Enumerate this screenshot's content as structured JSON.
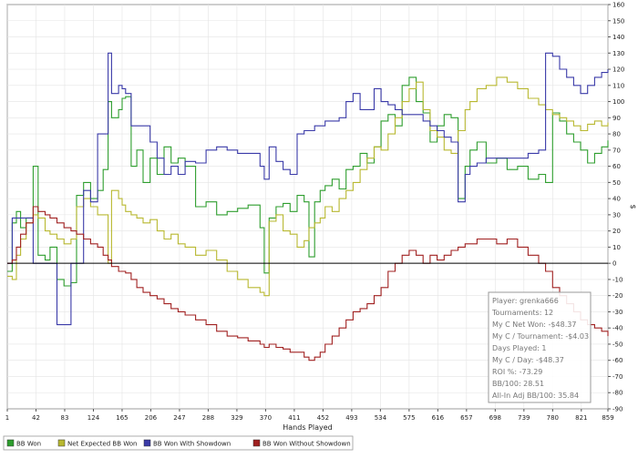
{
  "chart_data": {
    "type": "line",
    "xlabel": "Hands Played",
    "ylabel": "$",
    "x_ticks": [
      1,
      42,
      83,
      124,
      165,
      206,
      247,
      288,
      329,
      370,
      411,
      452,
      493,
      534,
      575,
      616,
      657,
      698,
      739,
      780,
      821,
      859
    ],
    "y_ticks": [
      -90,
      -80,
      -70,
      -60,
      -50,
      -40,
      -30,
      -20,
      -10,
      0,
      10,
      20,
      30,
      40,
      50,
      60,
      70,
      80,
      90,
      100,
      110,
      120,
      130,
      140,
      150,
      160
    ],
    "xlim": [
      1,
      859
    ],
    "ylim": [
      -90,
      160
    ],
    "series": [
      {
        "name": "BB Won",
        "color": "#2e9e2e",
        "x": [
          1,
          8,
          14,
          20,
          28,
          38,
          45,
          55,
          62,
          72,
          82,
          92,
          100,
          110,
          120,
          130,
          138,
          145,
          150,
          160,
          165,
          170,
          178,
          186,
          195,
          205,
          215,
          225,
          235,
          245,
          255,
          270,
          285,
          300,
          315,
          330,
          345,
          362,
          368,
          375,
          385,
          395,
          405,
          415,
          425,
          432,
          440,
          448,
          455,
          465,
          475,
          485,
          495,
          505,
          515,
          525,
          535,
          545,
          555,
          565,
          575,
          585,
          595,
          605,
          615,
          625,
          635,
          645,
          655,
          662,
          672,
          685,
          700,
          715,
          730,
          745,
          760,
          770,
          780,
          790,
          800,
          810,
          820,
          830,
          840,
          850,
          859
        ],
        "y": [
          -5,
          25,
          32,
          22,
          28,
          60,
          5,
          2,
          10,
          -10,
          -14,
          -12,
          42,
          50,
          40,
          45,
          58,
          100,
          90,
          95,
          102,
          103,
          60,
          70,
          50,
          65,
          55,
          72,
          62,
          65,
          60,
          35,
          38,
          30,
          32,
          34,
          36,
          22,
          -6,
          28,
          35,
          37,
          32,
          42,
          38,
          4,
          38,
          45,
          48,
          52,
          46,
          58,
          60,
          68,
          62,
          72,
          88,
          92,
          85,
          110,
          115,
          100,
          93,
          75,
          85,
          92,
          90,
          40,
          60,
          70,
          75,
          62,
          65,
          58,
          60,
          52,
          55,
          50,
          93,
          88,
          80,
          75,
          70,
          62,
          68,
          72,
          76
        ]
      },
      {
        "name": "Net Expected BB Won",
        "color": "#b8b830",
        "x": [
          1,
          8,
          14,
          20,
          28,
          38,
          45,
          55,
          62,
          72,
          82,
          92,
          100,
          110,
          120,
          130,
          138,
          145,
          150,
          160,
          165,
          170,
          178,
          186,
          195,
          205,
          215,
          225,
          235,
          245,
          255,
          270,
          285,
          300,
          315,
          330,
          345,
          362,
          368,
          375,
          385,
          395,
          405,
          415,
          425,
          432,
          440,
          448,
          455,
          465,
          475,
          485,
          495,
          505,
          515,
          525,
          535,
          545,
          555,
          565,
          575,
          585,
          595,
          605,
          615,
          625,
          635,
          645,
          655,
          662,
          672,
          685,
          700,
          715,
          730,
          745,
          760,
          770,
          780,
          790,
          800,
          810,
          820,
          830,
          840,
          850,
          859
        ],
        "y": [
          -8,
          -10,
          5,
          15,
          25,
          30,
          28,
          20,
          18,
          15,
          12,
          15,
          35,
          40,
          35,
          30,
          30,
          0,
          45,
          40,
          36,
          32,
          30,
          28,
          25,
          27,
          20,
          15,
          18,
          12,
          10,
          5,
          8,
          2,
          -5,
          -10,
          -15,
          -18,
          -20,
          26,
          30,
          20,
          18,
          10,
          14,
          22,
          25,
          28,
          35,
          32,
          40,
          45,
          50,
          58,
          65,
          72,
          70,
          80,
          90,
          100,
          108,
          112,
          95,
          82,
          78,
          70,
          68,
          82,
          95,
          100,
          108,
          110,
          115,
          112,
          108,
          102,
          98,
          95,
          92,
          90,
          88,
          85,
          82,
          86,
          88,
          85,
          87
        ]
      },
      {
        "name": "BB Won With Showdown",
        "color": "#3a3aa8",
        "x": [
          1,
          8,
          14,
          20,
          28,
          38,
          45,
          55,
          62,
          72,
          82,
          92,
          100,
          110,
          120,
          130,
          138,
          145,
          150,
          160,
          165,
          170,
          178,
          186,
          195,
          205,
          215,
          225,
          235,
          245,
          255,
          270,
          285,
          300,
          315,
          330,
          345,
          362,
          368,
          375,
          385,
          395,
          405,
          415,
          425,
          432,
          440,
          448,
          455,
          465,
          475,
          485,
          495,
          505,
          515,
          525,
          535,
          545,
          555,
          565,
          575,
          585,
          595,
          605,
          615,
          625,
          635,
          645,
          655,
          662,
          672,
          685,
          700,
          715,
          730,
          745,
          760,
          770,
          780,
          790,
          800,
          810,
          820,
          830,
          840,
          850,
          859
        ],
        "y": [
          0,
          28,
          28,
          28,
          28,
          0,
          0,
          0,
          0,
          -38,
          -38,
          0,
          0,
          45,
          38,
          80,
          80,
          130,
          105,
          110,
          108,
          105,
          85,
          85,
          85,
          75,
          65,
          55,
          60,
          55,
          63,
          62,
          70,
          72,
          70,
          68,
          68,
          60,
          52,
          72,
          63,
          58,
          55,
          80,
          82,
          82,
          85,
          85,
          88,
          88,
          90,
          100,
          105,
          95,
          95,
          108,
          100,
          98,
          95,
          92,
          92,
          92,
          88,
          85,
          82,
          78,
          75,
          38,
          55,
          60,
          62,
          65,
          65,
          65,
          65,
          68,
          70,
          130,
          128,
          120,
          115,
          110,
          105,
          110,
          115,
          118,
          120
        ]
      },
      {
        "name": "BB Won Without Showdown",
        "color": "#a02020",
        "x": [
          1,
          8,
          14,
          20,
          28,
          38,
          45,
          55,
          62,
          72,
          82,
          92,
          100,
          110,
          120,
          130,
          138,
          145,
          150,
          160,
          165,
          170,
          178,
          186,
          195,
          205,
          215,
          225,
          235,
          245,
          255,
          270,
          285,
          300,
          315,
          330,
          345,
          362,
          368,
          375,
          385,
          395,
          405,
          415,
          425,
          432,
          440,
          448,
          455,
          465,
          475,
          485,
          495,
          505,
          515,
          525,
          535,
          545,
          555,
          565,
          575,
          585,
          595,
          605,
          615,
          625,
          635,
          645,
          655,
          662,
          672,
          685,
          700,
          715,
          730,
          745,
          760,
          770,
          780,
          790,
          800,
          810,
          820,
          830,
          840,
          850,
          859
        ],
        "y": [
          0,
          2,
          10,
          18,
          25,
          35,
          32,
          30,
          28,
          25,
          22,
          20,
          18,
          15,
          12,
          10,
          5,
          2,
          -2,
          -5,
          -5,
          -6,
          -10,
          -15,
          -18,
          -20,
          -22,
          -25,
          -28,
          -30,
          -32,
          -35,
          -38,
          -42,
          -45,
          -46,
          -48,
          -50,
          -52,
          -50,
          -52,
          -53,
          -55,
          -55,
          -58,
          -60,
          -58,
          -55,
          -50,
          -45,
          -40,
          -35,
          -30,
          -28,
          -25,
          -20,
          -15,
          -5,
          0,
          5,
          8,
          5,
          0,
          5,
          2,
          5,
          8,
          10,
          12,
          12,
          15,
          15,
          12,
          15,
          10,
          5,
          0,
          -5,
          -15,
          -20,
          -25,
          -30,
          -35,
          -38,
          -40,
          -42,
          -45
        ]
      }
    ]
  },
  "info_box": {
    "lines": [
      "Player: grenka666",
      "Tournaments: 12",
      "My C Net Won: -$48.37",
      "My C / Tournament: -$4.03",
      "Days Played: 1",
      "My C / Day: -$48.37",
      "ROI %: -73.29",
      "BB/100: 28.51",
      "All-In Adj BB/100: 35.84"
    ]
  },
  "legend": [
    {
      "label": "BB Won",
      "color": "#2e9e2e"
    },
    {
      "label": "Net Expected BB Won",
      "color": "#b8b830"
    },
    {
      "label": "BB Won With Showdown",
      "color": "#3a3aa8"
    },
    {
      "label": "BB Won Without Showdown",
      "color": "#a02020"
    }
  ]
}
